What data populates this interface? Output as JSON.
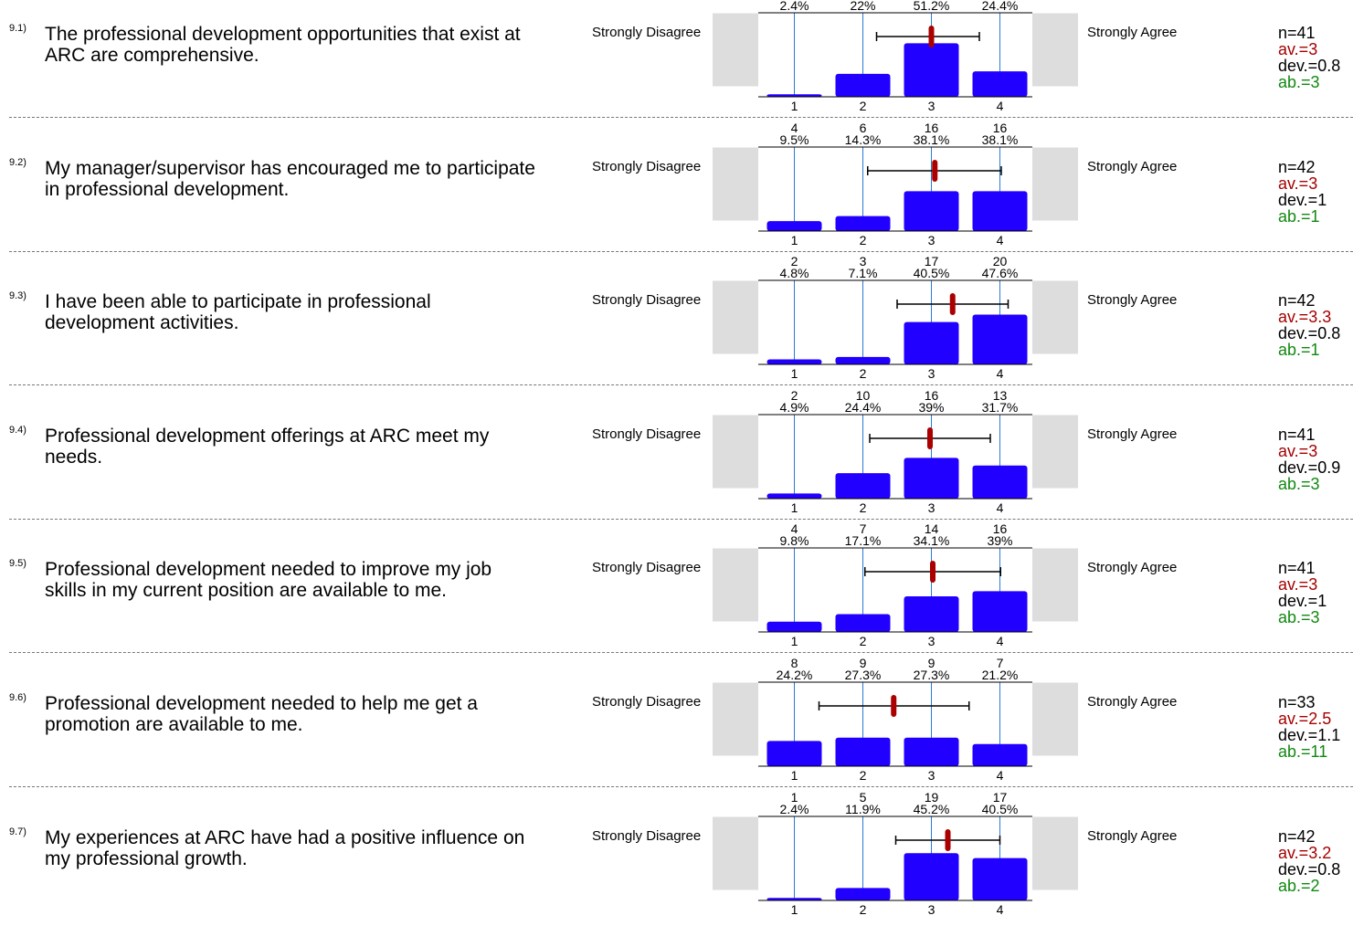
{
  "colors": {
    "bar": "#2200ff",
    "gridline": "#2a7bd4",
    "sidebox": "#dddddd",
    "mean_marker": "#aa0000",
    "av_text": "#a60000",
    "ab_text": "#118811"
  },
  "scale": {
    "left_label": "Strongly Disagree",
    "right_label": "Strongly Agree",
    "ticks": [
      "1",
      "2",
      "3",
      "4"
    ]
  },
  "chart_data": [
    {
      "type": "bar",
      "number": "9.1)",
      "question": "The professional development opportunities that exist at ARC are comprehensive.",
      "categories": [
        "1",
        "2",
        "3",
        "4"
      ],
      "counts": [
        "1",
        "9",
        "21",
        "10"
      ],
      "percents": [
        "2.4%",
        "22%",
        "51.2%",
        "24.4%"
      ],
      "values": [
        1,
        9,
        21,
        10
      ],
      "mean": 3,
      "sd_range": [
        2.2,
        3.7
      ],
      "stats": {
        "n": "n=41",
        "av": "av.=3",
        "dev": "dev.=0.8",
        "ab": "ab.=3"
      }
    },
    {
      "type": "bar",
      "number": "9.2)",
      "question": "My manager/supervisor has encouraged me to participate in professional development.",
      "categories": [
        "1",
        "2",
        "3",
        "4"
      ],
      "counts": [
        "4",
        "6",
        "16",
        "16"
      ],
      "percents": [
        "9.5%",
        "14.3%",
        "38.1%",
        "38.1%"
      ],
      "values": [
        4,
        6,
        16,
        16
      ],
      "mean": 3.05,
      "sd_range": [
        2.07,
        4.02
      ],
      "stats": {
        "n": "n=42",
        "av": "av.=3",
        "dev": "dev.=1",
        "ab": "ab.=1"
      }
    },
    {
      "type": "bar",
      "number": "9.3)",
      "question": "I have been able to participate in professional development activities.",
      "categories": [
        "1",
        "2",
        "3",
        "4"
      ],
      "counts": [
        "2",
        "3",
        "17",
        "20"
      ],
      "percents": [
        "4.8%",
        "7.1%",
        "40.5%",
        "47.6%"
      ],
      "values": [
        2,
        3,
        17,
        20
      ],
      "mean": 3.31,
      "sd_range": [
        2.5,
        4.12
      ],
      "stats": {
        "n": "n=42",
        "av": "av.=3.3",
        "dev": "dev.=0.8",
        "ab": "ab.=1"
      }
    },
    {
      "type": "bar",
      "number": "9.4)",
      "question": "Professional development offerings at ARC meet my needs.",
      "categories": [
        "1",
        "2",
        "3",
        "4"
      ],
      "counts": [
        "2",
        "10",
        "16",
        "13"
      ],
      "percents": [
        "4.9%",
        "24.4%",
        "39%",
        "31.7%"
      ],
      "values": [
        2,
        10,
        16,
        13
      ],
      "mean": 2.98,
      "sd_range": [
        2.1,
        3.86
      ],
      "stats": {
        "n": "n=41",
        "av": "av.=3",
        "dev": "dev.=0.9",
        "ab": "ab.=3"
      }
    },
    {
      "type": "bar",
      "number": "9.5)",
      "question": "Professional development needed to improve my job skills in my current position are available to me.",
      "categories": [
        "1",
        "2",
        "3",
        "4"
      ],
      "counts": [
        "4",
        "7",
        "14",
        "16"
      ],
      "percents": [
        "9.8%",
        "17.1%",
        "34.1%",
        "39%"
      ],
      "values": [
        4,
        7,
        14,
        16
      ],
      "mean": 3.02,
      "sd_range": [
        2.03,
        4.01
      ],
      "stats": {
        "n": "n=41",
        "av": "av.=3",
        "dev": "dev.=1",
        "ab": "ab.=3"
      }
    },
    {
      "type": "bar",
      "number": "9.6)",
      "question": "Professional development needed to help me get a promotion are available to me.",
      "categories": [
        "1",
        "2",
        "3",
        "4"
      ],
      "counts": [
        "8",
        "9",
        "9",
        "7"
      ],
      "percents": [
        "24.2%",
        "27.3%",
        "27.3%",
        "21.2%"
      ],
      "values": [
        8,
        9,
        9,
        7
      ],
      "mean": 2.45,
      "sd_range": [
        1.36,
        3.55
      ],
      "stats": {
        "n": "n=33",
        "av": "av.=2.5",
        "dev": "dev.=1.1",
        "ab": "ab.=11"
      }
    },
    {
      "type": "bar",
      "number": "9.7)",
      "question": "My experiences at ARC have had a positive influence on my professional growth.",
      "categories": [
        "1",
        "2",
        "3",
        "4"
      ],
      "counts": [
        "1",
        "5",
        "19",
        "17"
      ],
      "percents": [
        "2.4%",
        "11.9%",
        "45.2%",
        "40.5%"
      ],
      "values": [
        1,
        5,
        19,
        17
      ],
      "mean": 3.24,
      "sd_range": [
        2.48,
        4.0
      ],
      "stats": {
        "n": "n=42",
        "av": "av.=3.2",
        "dev": "dev.=0.8",
        "ab": "ab.=2"
      }
    }
  ]
}
